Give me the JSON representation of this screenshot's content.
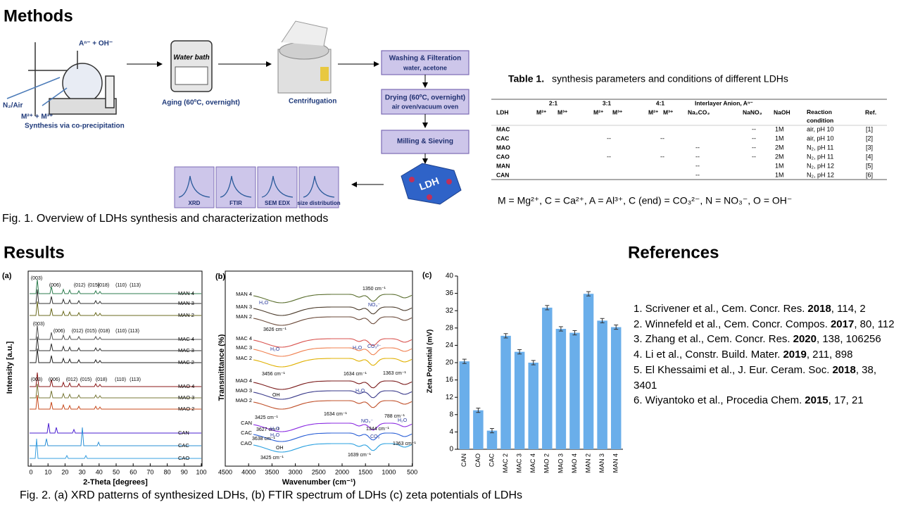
{
  "methods": {
    "title": "Methods",
    "synthesis": {
      "reagent_top": "Aⁿ⁻ + OH⁻",
      "gas": "N₂/Air",
      "reagent_bottom": "M²⁺ + M³⁺",
      "label": "Synthesis via co-precipitation"
    },
    "aging": {
      "device": "Water bath",
      "label": "Aging (60ºC, overnight)"
    },
    "centrifugation": "Centrifugation",
    "steps": [
      {
        "title": "Washing & Filteration",
        "detail": "water, acetone"
      },
      {
        "title": "Drying (60ºC, overnight)",
        "detail": "air oven/vacuum oven"
      },
      {
        "title": "Milling & Sieving"
      }
    ],
    "product": "LDH",
    "characterization": [
      "XRD",
      "FTIR",
      "SEM EDX",
      "size distribution"
    ],
    "caption": "Fig. 1. Overview of LDHs synthesis and characterization methods"
  },
  "table": {
    "label": "Table 1.",
    "title": "synthesis parameters and conditions of different LDHs",
    "groups": [
      "2:1",
      "3:1",
      "4:1",
      "Interlayer Anion, Aⁿ⁻"
    ],
    "columns": [
      "LDH",
      "M²⁺",
      "M³⁺",
      "M²⁺",
      "M³⁺",
      "M²⁺",
      "M³⁺",
      "Na₂CO₃",
      "NaNO₃",
      "NaOH",
      "Reaction condition",
      "Ref."
    ],
    "rows": [
      {
        "ldh": "MAC",
        "nano3": "--",
        "naoh": "1M",
        "condition": "air, pH 10",
        "ref": "[1]"
      },
      {
        "ldh": "CAC",
        "r31": "--",
        "r41": "--",
        "nano3": "--",
        "naoh": "1M",
        "condition": "air, pH 10",
        "ref": "[2]"
      },
      {
        "ldh": "MAO",
        "na2co3": "--",
        "nano3": "--",
        "naoh": "2M",
        "condition": "N₂, pH 11",
        "ref": "[3]"
      },
      {
        "ldh": "CAO",
        "r31": "--",
        "r41": "--",
        "na2co3": "--",
        "nano3": "--",
        "naoh": "2M",
        "condition": "N₂, pH 11",
        "ref": "[4]"
      },
      {
        "ldh": "MAN",
        "na2co3": "--",
        "naoh": "1M",
        "condition": "N₂, pH 12",
        "ref": "[5]"
      },
      {
        "ldh": "CAN",
        "na2co3": "--",
        "naoh": "1M",
        "condition": "N₂, pH 12",
        "ref": "[6]"
      }
    ],
    "note": "M = Mg²⁺, C = Ca²⁺, A = Al³⁺, C (end) = CO₃²⁻, N = NO₃⁻, O = OH⁻"
  },
  "results": {
    "title": "Results",
    "caption": "Fig. 2. (a) XRD patterns of synthesized LDHs,  (b) FTIR spectrum of LDHs  (c) zeta potentials of LDHs",
    "xrd": {
      "panel": "(a)",
      "xlabel": "2-Theta [degrees]",
      "ylabel": "Intensity [a.u.]",
      "xticks": [
        0,
        10,
        20,
        30,
        40,
        50,
        60,
        70,
        80,
        90,
        100
      ],
      "series": [
        "MAN 4",
        "MAN 3",
        "MAN 2",
        "MAC 4",
        "MAC 3",
        "MAC 2",
        "MAO 4",
        "MAO 3",
        "MAO 2",
        "CAN",
        "CAC",
        "CAO"
      ],
      "peaks": [
        [
          "(003)",
          "(006)",
          "(012)",
          "(015)",
          "(018)",
          "(110)",
          "(113)"
        ],
        [
          "(003)",
          "(006)",
          "(012)",
          "(015)",
          "(018)",
          "(110)",
          "(113)"
        ],
        [
          "(003)",
          "(006)",
          "(012)",
          "(015)",
          "(018)",
          "(110)",
          "(113)"
        ]
      ]
    },
    "ftir": {
      "panel": "(b)",
      "xlabel": "Wavenumber (cm⁻¹)",
      "ylabel": "Transmittance (%)",
      "xticks": [
        4500,
        4000,
        3500,
        3000,
        2500,
        2000,
        1500,
        1000,
        500
      ],
      "series": [
        "MAN 4",
        "MAN 3",
        "MAN 2",
        "MAC 4",
        "MAC 3",
        "MAC 2",
        "MAO 4",
        "MAO 3",
        "MAO 2",
        "CAN",
        "CAC",
        "CAO"
      ],
      "annotations": [
        "1350 cm⁻¹",
        "H₂O",
        "NO₃⁻",
        "3626 cm⁻¹",
        "H₂O",
        "H₂O",
        "CO₃²⁻",
        "3456 cm⁻¹",
        "1634 cm⁻¹",
        "1363 cm⁻¹",
        "OH",
        "H₂O",
        "3425 cm⁻¹",
        "1634 cm⁻¹",
        "NO₃⁻",
        "788 cm⁻¹",
        "H₂O",
        "3627 cm⁻¹",
        "H₂O",
        "3638 cm⁻¹",
        "H₂O",
        "1344 cm⁻¹",
        "CO₃",
        "1363 cm⁻¹",
        "OH",
        "1639 cm⁻¹",
        "3425 cm⁻¹"
      ]
    }
  },
  "chart_data": {
    "type": "bar",
    "panel": "(c)",
    "ylabel": "Zeta Potential (mV)",
    "categories": [
      "CAN",
      "CAO",
      "CAC",
      "MAC 2",
      "MAC 3",
      "MAC 4",
      "MAO 2",
      "MAO 3",
      "MAO 4",
      "MAN 2",
      "MAN 3",
      "MAN 4"
    ],
    "values": [
      20.3,
      9.0,
      4.3,
      26.2,
      22.5,
      20.0,
      32.7,
      27.8,
      26.9,
      35.9,
      29.7,
      28.2
    ],
    "errors": [
      0.5,
      0.5,
      0.5,
      0.5,
      0.5,
      0.5,
      0.5,
      0.5,
      0.5,
      0.5,
      0.5,
      0.5
    ],
    "color": "#6aaeea",
    "ylim": [
      0,
      40
    ],
    "yticks": [
      0,
      4,
      8,
      12,
      16,
      20,
      24,
      28,
      32,
      36,
      40
    ]
  },
  "references": {
    "title": "References",
    "items": [
      {
        "text": "1. Scrivener et al., Cem. Concr. Res.",
        "year": "2018",
        "end": ", 114, 2"
      },
      {
        "text": "2. Winnefeld et al., Cem. Concr. Compos.",
        "year": "2017",
        "end": ", 80, 112"
      },
      {
        "text": "3. Zhang et al., Cem. Concr. Res.",
        "year": "2020",
        "end": ", 138, 106256"
      },
      {
        "text": "4. Li et al., Constr. Build. Mater.",
        "year": "2019",
        "end": ", 211, 898"
      },
      {
        "text": "5. El Khessaimi et al., J. Eur. Ceram. Soc.",
        "year": "2018",
        "end": ", 38, 3401"
      },
      {
        "text": "6. Wiyantoko et al., Procedia Chem.",
        "year": "2015",
        "end": ", 17, 21"
      }
    ]
  }
}
